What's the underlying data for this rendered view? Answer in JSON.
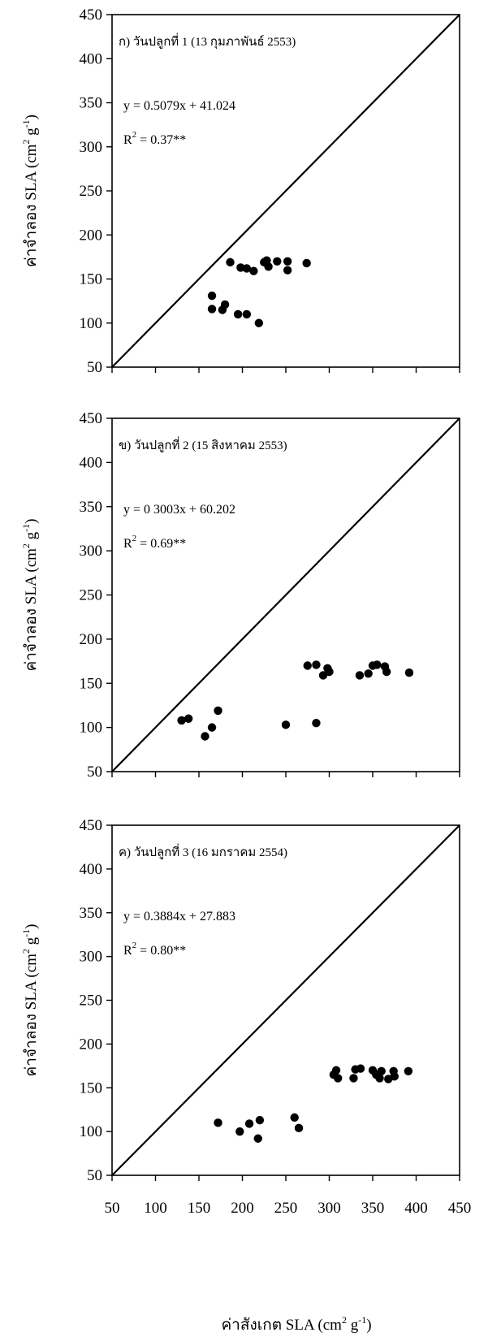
{
  "figure": {
    "xlabel_main": "ค่าสังเกต SLA (cm",
    "xlabel_sup": "2",
    "xlabel_mid": " g",
    "xlabel_sup2": "-1",
    "xlabel_end": ")"
  },
  "chart_data": [
    {
      "type": "scatter",
      "title": "ก) วันปลูกที่ 1 (13 กุมภาพันธ์ 2553)",
      "equation": "y = 0.5079x + 41.024",
      "r2_prefix": "R",
      "r2_sup": "2",
      "r2_value": " = 0.37**",
      "ylabel_main": "ค่าจำลอง SLA (cm",
      "ylabel_sup": "2",
      "ylabel_mid": " g",
      "ylabel_sup2": "-1",
      "ylabel_end": ")",
      "xlim": [
        50,
        450
      ],
      "ylim": [
        50,
        450
      ],
      "yticks": [
        "50",
        "100",
        "150",
        "200",
        "250",
        "300",
        "350",
        "400",
        "450"
      ],
      "xticks": [
        "50",
        "100",
        "150",
        "200",
        "250",
        "300",
        "350",
        "400",
        "450"
      ],
      "show_xtick_labels": false,
      "reference_line": "1:1",
      "points": [
        [
          165,
          131
        ],
        [
          165,
          116
        ],
        [
          177,
          115
        ],
        [
          180,
          121
        ],
        [
          195,
          110
        ],
        [
          205,
          110
        ],
        [
          219,
          100
        ],
        [
          186,
          169
        ],
        [
          198,
          163
        ],
        [
          205,
          162
        ],
        [
          213,
          159
        ],
        [
          225,
          169
        ],
        [
          228,
          171
        ],
        [
          230,
          164
        ],
        [
          240,
          170
        ],
        [
          252,
          170
        ],
        [
          252,
          160
        ],
        [
          274,
          168
        ]
      ]
    },
    {
      "type": "scatter",
      "title": "ข) วันปลูกที่ 2 (15 สิงหาคม 2553)",
      "equation": "y = 0 3003x + 60.202",
      "r2_prefix": "R",
      "r2_sup": "2",
      "r2_value": " = 0.69**",
      "ylabel_main": "ค่าจำลอง SLA (cm",
      "ylabel_sup": "2",
      "ylabel_mid": " g",
      "ylabel_sup2": "-1",
      "ylabel_end": ")",
      "xlim": [
        50,
        450
      ],
      "ylim": [
        50,
        450
      ],
      "yticks": [
        "50",
        "100",
        "150",
        "200",
        "250",
        "300",
        "350",
        "400",
        "450"
      ],
      "xticks": [
        "50",
        "100",
        "150",
        "200",
        "250",
        "300",
        "350",
        "400",
        "450"
      ],
      "show_xtick_labels": false,
      "reference_line": "1:1",
      "points": [
        [
          130,
          108
        ],
        [
          138,
          110
        ],
        [
          157,
          90
        ],
        [
          165,
          100
        ],
        [
          172,
          119
        ],
        [
          250,
          103
        ],
        [
          285,
          105
        ],
        [
          275,
          170
        ],
        [
          285,
          171
        ],
        [
          293,
          159
        ],
        [
          298,
          167
        ],
        [
          300,
          163
        ],
        [
          335,
          159
        ],
        [
          345,
          161
        ],
        [
          350,
          170
        ],
        [
          355,
          171
        ],
        [
          364,
          169
        ],
        [
          366,
          163
        ],
        [
          392,
          162
        ]
      ]
    },
    {
      "type": "scatter",
      "title": "ค) วันปลูกที่ 3 (16 มกราคม 2554)",
      "equation": "y = 0.3884x + 27.883",
      "r2_prefix": "R",
      "r2_sup": "2",
      "r2_value": " = 0.80**",
      "ylabel_main": "ค่าจำลอง SLA (cm",
      "ylabel_sup": "2",
      "ylabel_mid": " g",
      "ylabel_sup2": "-1",
      "ylabel_end": ")",
      "xlim": [
        50,
        450
      ],
      "ylim": [
        50,
        450
      ],
      "yticks": [
        "50",
        "100",
        "150",
        "200",
        "250",
        "300",
        "350",
        "400",
        "450"
      ],
      "xticks": [
        "50",
        "100",
        "150",
        "200",
        "250",
        "300",
        "350",
        "400",
        "450"
      ],
      "show_xtick_labels": true,
      "reference_line": "1:1",
      "points": [
        [
          172,
          110
        ],
        [
          197,
          100
        ],
        [
          208,
          109
        ],
        [
          218,
          92
        ],
        [
          220,
          113
        ],
        [
          260,
          116
        ],
        [
          265,
          104
        ],
        [
          305,
          165
        ],
        [
          308,
          170
        ],
        [
          310,
          161
        ],
        [
          328,
          161
        ],
        [
          330,
          171
        ],
        [
          336,
          172
        ],
        [
          350,
          170
        ],
        [
          354,
          165
        ],
        [
          358,
          161
        ],
        [
          360,
          169
        ],
        [
          368,
          160
        ],
        [
          374,
          169
        ],
        [
          375,
          163
        ],
        [
          391,
          169
        ]
      ]
    }
  ]
}
